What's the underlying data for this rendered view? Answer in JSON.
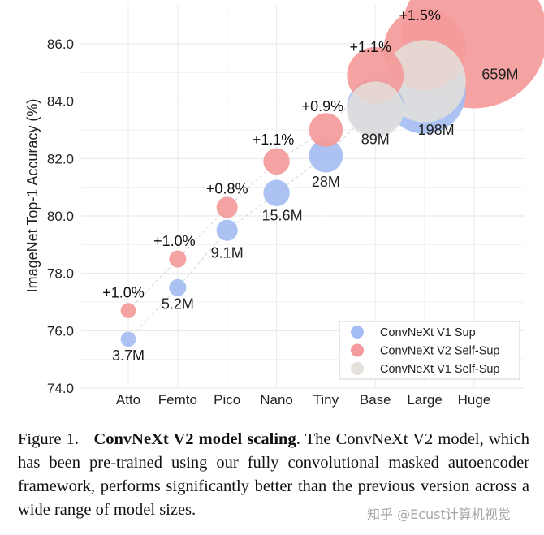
{
  "chart_data": {
    "type": "scatter",
    "ylabel": "ImageNet Top-1 Accuracy (%)",
    "xlabel": "",
    "categories": [
      "Atto",
      "Femto",
      "Pico",
      "Nano",
      "Tiny",
      "Base",
      "Large",
      "Huge"
    ],
    "yticks": [
      "74.0",
      "76.0",
      "78.0",
      "80.0",
      "82.0",
      "84.0",
      "86.0"
    ],
    "ylim": [
      74.0,
      87.5
    ],
    "grid": true,
    "legend_position": "bottom-right",
    "colors": {
      "v1_sup": "#a4bdf2",
      "v2_self_sup": "#f49a9a",
      "v1_self_sup": "#e3e1da",
      "trend_line": "#d6d6d6"
    },
    "series": [
      {
        "name": "ConvNeXt V1 Sup",
        "key": "v1_sup",
        "values": [
          75.7,
          77.5,
          79.5,
          80.8,
          82.1,
          83.8,
          84.3,
          null
        ]
      },
      {
        "name": "ConvNeXt V2 Self-Sup",
        "key": "v2_self_sup",
        "values": [
          76.7,
          78.5,
          80.3,
          81.9,
          83.0,
          84.9,
          85.8,
          86.3
        ]
      },
      {
        "name": "ConvNeXt V1 Self-Sup",
        "key": "v1_self_sup",
        "values": [
          null,
          null,
          null,
          null,
          null,
          83.7,
          84.7,
          null
        ]
      }
    ],
    "params": [
      3.7,
      5.2,
      9.1,
      15.6,
      28,
      89,
      198,
      659
    ],
    "size_labels": [
      "3.7M",
      "5.2M",
      "9.1M",
      "15.6M",
      "28M",
      "89M",
      "198M",
      "659M"
    ],
    "gain_labels": [
      "+1.0%",
      "+1.0%",
      "+0.8%",
      "+1.1%",
      "+0.9%",
      "+1.1%",
      "+1.5%",
      ""
    ]
  },
  "caption": {
    "prefix": "Figure 1.",
    "title": "ConvNeXt V2 model scaling",
    "body": ". The ConvNeXt V2 model, which has been pre-trained using our fully convolutional masked autoencoder framework, performs significantly better than the previous version across a wide range of model sizes."
  },
  "watermark": "知乎 @Ecust计算机视觉"
}
